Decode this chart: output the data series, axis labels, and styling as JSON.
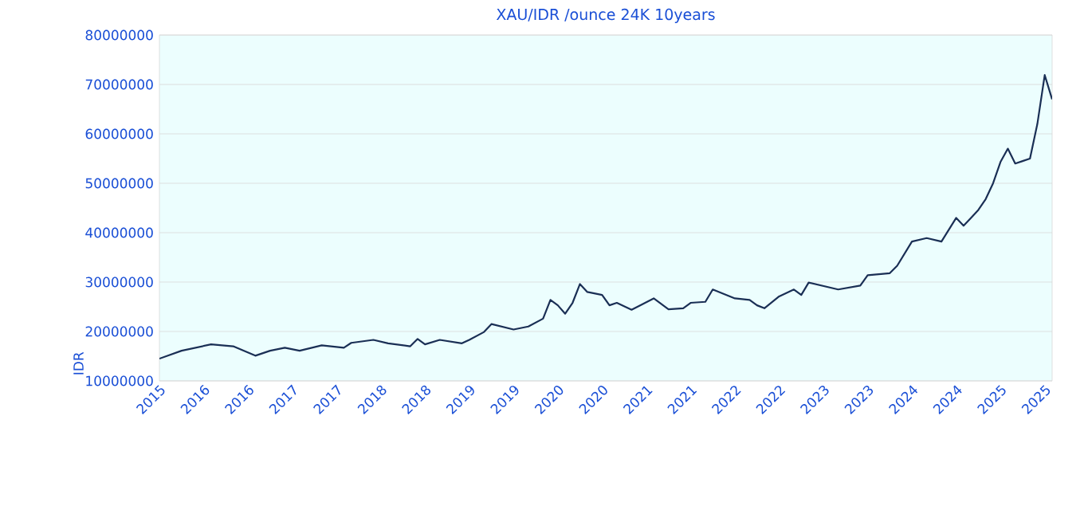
{
  "chart_data": {
    "type": "line",
    "title": "XAU/IDR /ounce 24K 10years",
    "ylabel": "IDR",
    "grid": "y",
    "line_style": "solid",
    "xlim": [
      "2015-07",
      "2025-08"
    ],
    "ylim": [
      10000000,
      80000000
    ],
    "yticks": [
      10000000,
      20000000,
      30000000,
      40000000,
      50000000,
      60000000,
      70000000,
      80000000
    ],
    "xticks": [
      {
        "value": "2015-07",
        "label": "2015"
      },
      {
        "value": "2016-01",
        "label": "2016"
      },
      {
        "value": "2016-07",
        "label": "2016"
      },
      {
        "value": "2017-01",
        "label": "2017"
      },
      {
        "value": "2017-07",
        "label": "2017"
      },
      {
        "value": "2018-01",
        "label": "2018"
      },
      {
        "value": "2018-07",
        "label": "2018"
      },
      {
        "value": "2019-01",
        "label": "2019"
      },
      {
        "value": "2019-07",
        "label": "2019"
      },
      {
        "value": "2020-01",
        "label": "2020"
      },
      {
        "value": "2020-07",
        "label": "2020"
      },
      {
        "value": "2021-01",
        "label": "2021"
      },
      {
        "value": "2021-07",
        "label": "2021"
      },
      {
        "value": "2022-01",
        "label": "2022"
      },
      {
        "value": "2022-07",
        "label": "2022"
      },
      {
        "value": "2023-01",
        "label": "2023"
      },
      {
        "value": "2023-07",
        "label": "2023"
      },
      {
        "value": "2024-01",
        "label": "2024"
      },
      {
        "value": "2024-07",
        "label": "2024"
      },
      {
        "value": "2025-01",
        "label": "2025"
      },
      {
        "value": "2025-07",
        "label": "2025"
      }
    ],
    "x": [
      "2015-07",
      "2015-10",
      "2016-02",
      "2016-05",
      "2016-08",
      "2016-10",
      "2016-12",
      "2017-02",
      "2017-05",
      "2017-08",
      "2017-09",
      "2017-12",
      "2018-02",
      "2018-05",
      "2018-06",
      "2018-07",
      "2018-09",
      "2018-12",
      "2019-01",
      "2019-03",
      "2019-04",
      "2019-07",
      "2019-09",
      "2019-11",
      "2019-12",
      "2020-01",
      "2020-02",
      "2020-03",
      "2020-04",
      "2020-05",
      "2020-07",
      "2020-08",
      "2020-09",
      "2020-11",
      "2021-02",
      "2021-04",
      "2021-06",
      "2021-07",
      "2021-09",
      "2021-10",
      "2022-01",
      "2022-03",
      "2022-04",
      "2022-05",
      "2022-07",
      "2022-09",
      "2022-10",
      "2022-11",
      "2023-03",
      "2023-06",
      "2023-07",
      "2023-10",
      "2023-11",
      "2024-01",
      "2024-03",
      "2024-05",
      "2024-07",
      "2024-08",
      "2024-09",
      "2024-10",
      "2024-11",
      "2024-12",
      "2025-01",
      "2025-02",
      "2025-03",
      "2025-04",
      "2025-05",
      "2025-06",
      "2025-07",
      "2025-08"
    ],
    "series": [
      {
        "color": "#1a2f55",
        "values": [
          14500000,
          16100000,
          17400000,
          17000000,
          15100000,
          16100000,
          16700000,
          16100000,
          17200000,
          16700000,
          17700000,
          18300000,
          17600000,
          17000000,
          18500000,
          17400000,
          18300000,
          17600000,
          18300000,
          19900000,
          21500000,
          20400000,
          21000000,
          22600000,
          26400000,
          25300000,
          23600000,
          25800000,
          29600000,
          28000000,
          27400000,
          25300000,
          25800000,
          24400000,
          26700000,
          24500000,
          24700000,
          25800000,
          26000000,
          28500000,
          26700000,
          26400000,
          25300000,
          24700000,
          27100000,
          28500000,
          27400000,
          29900000,
          28500000,
          29300000,
          31400000,
          31800000,
          33300000,
          38200000,
          38900000,
          38200000,
          43000000,
          41400000,
          43000000,
          44600000,
          46800000,
          50000000,
          54300000,
          57000000,
          54000000,
          54500000,
          55000000,
          62000000,
          71900000,
          67000000
        ]
      }
    ]
  }
}
